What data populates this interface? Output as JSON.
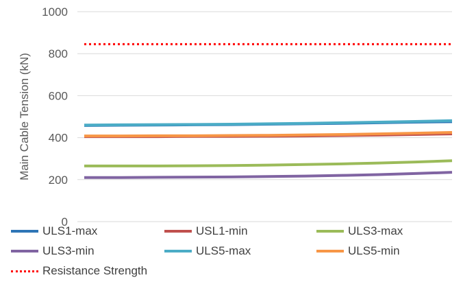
{
  "chart_data": {
    "type": "line",
    "title": "",
    "xlabel": "",
    "ylabel": "Main Cable Tension (kN)",
    "ylim": [
      0,
      1000
    ],
    "yticks": [
      0,
      200,
      400,
      600,
      800,
      1000
    ],
    "grid": "horizontal",
    "legend_position": "bottom",
    "x": [
      0,
      1,
      2,
      3,
      4,
      5,
      6,
      7,
      8,
      9,
      10
    ],
    "series": [
      {
        "name": "ULS1-max",
        "color": "#2E75B6",
        "style": "solid",
        "values": [
          458,
          459,
          460,
          461,
          462,
          464,
          466,
          468,
          471,
          474,
          476
        ]
      },
      {
        "name": "USL1-min",
        "color": "#C0504D",
        "style": "solid",
        "values": [
          405,
          405,
          405,
          406,
          406,
          407,
          408,
          410,
          412,
          415,
          418
        ]
      },
      {
        "name": "ULS3-max",
        "color": "#9BBB59",
        "style": "solid",
        "values": [
          265,
          265,
          265,
          266,
          267,
          269,
          272,
          275,
          279,
          284,
          290
        ]
      },
      {
        "name": "ULS3-min",
        "color": "#8064A2",
        "style": "solid",
        "values": [
          210,
          210,
          211,
          212,
          213,
          215,
          217,
          220,
          224,
          229,
          235
        ]
      },
      {
        "name": "ULS5-max",
        "color": "#4BACC6",
        "style": "solid",
        "values": [
          460,
          461,
          462,
          463,
          464,
          466,
          468,
          471,
          474,
          477,
          481
        ]
      },
      {
        "name": "ULS5-min",
        "color": "#F79646",
        "style": "solid",
        "values": [
          408,
          408,
          409,
          409,
          410,
          411,
          413,
          415,
          418,
          421,
          425
        ]
      },
      {
        "name": "Resistance Strength",
        "color": "#FF0000",
        "style": "dotted",
        "values": [
          845,
          845,
          845,
          845,
          845,
          845,
          845,
          845,
          845,
          845,
          845
        ]
      }
    ]
  }
}
